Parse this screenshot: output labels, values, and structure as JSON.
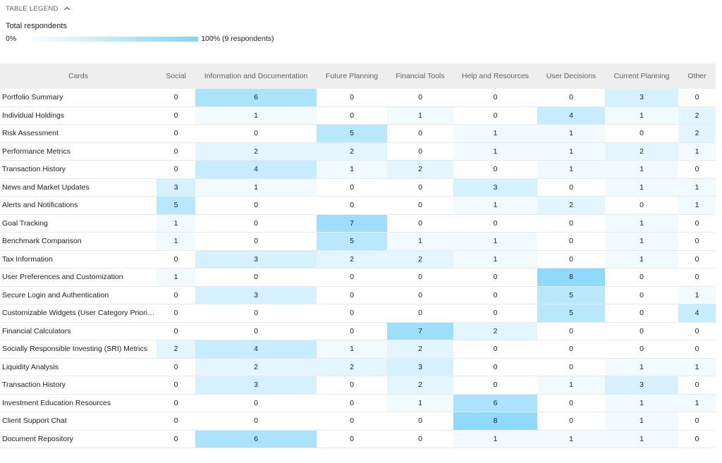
{
  "legend": {
    "toggle_label": "TABLE LEGEND",
    "title": "Total respondents",
    "min_label": "0%",
    "max_label": "100% (9 respondents)"
  },
  "colors": {
    "scale_max": "#81d4fa",
    "header_bg": "#eeeeee",
    "row_border": "#e8eaed"
  },
  "table": {
    "max_value": 9,
    "columns": [
      "Cards",
      "Social",
      "Information and Documentation",
      "Future Planning",
      "Financial Tools",
      "Help and Resources",
      "User Decisions",
      "Current Planning",
      "Other"
    ],
    "rows": [
      {
        "card": "Portfolio Summary",
        "values": [
          0,
          6,
          0,
          0,
          0,
          0,
          3,
          0
        ]
      },
      {
        "card": "Individual Holdings",
        "values": [
          0,
          1,
          0,
          1,
          0,
          4,
          1,
          2
        ]
      },
      {
        "card": "Risk Assessment",
        "values": [
          0,
          0,
          5,
          0,
          1,
          1,
          0,
          2
        ]
      },
      {
        "card": "Performance Metrics",
        "values": [
          0,
          2,
          2,
          0,
          1,
          1,
          2,
          1
        ]
      },
      {
        "card": "Transaction History",
        "values": [
          0,
          4,
          1,
          2,
          0,
          1,
          1,
          0
        ]
      },
      {
        "card": "News and Market Updates",
        "values": [
          3,
          1,
          0,
          0,
          3,
          0,
          1,
          1
        ]
      },
      {
        "card": "Alerts and Notifications",
        "values": [
          5,
          0,
          0,
          0,
          1,
          2,
          0,
          1
        ]
      },
      {
        "card": "Goal Tracking",
        "values": [
          1,
          0,
          7,
          0,
          0,
          0,
          1,
          0
        ]
      },
      {
        "card": "Benchmark Comparison",
        "values": [
          1,
          0,
          5,
          1,
          1,
          0,
          1,
          0
        ]
      },
      {
        "card": "Tax Information",
        "values": [
          0,
          3,
          2,
          2,
          1,
          0,
          1,
          0
        ]
      },
      {
        "card": "User Preferences and Customization",
        "values": [
          1,
          0,
          0,
          0,
          0,
          8,
          0,
          0
        ]
      },
      {
        "card": "Secure Login and Authentication",
        "values": [
          0,
          3,
          0,
          0,
          0,
          5,
          0,
          1
        ]
      },
      {
        "card": "Customizable Widgets (User Category Prioritization)",
        "values": [
          0,
          0,
          0,
          0,
          0,
          5,
          0,
          4
        ]
      },
      {
        "card": "Financial Calculators",
        "values": [
          0,
          0,
          0,
          7,
          2,
          0,
          0,
          0
        ]
      },
      {
        "card": "Socially Responsible Investing (SRI) Metrics",
        "values": [
          2,
          4,
          1,
          2,
          0,
          0,
          0,
          0
        ]
      },
      {
        "card": "Liquidity Analysis",
        "values": [
          0,
          2,
          2,
          3,
          0,
          0,
          1,
          1
        ]
      },
      {
        "card": "Transaction History",
        "values": [
          0,
          3,
          0,
          2,
          0,
          1,
          3,
          0
        ]
      },
      {
        "card": "Investment Education Resources",
        "values": [
          0,
          0,
          0,
          1,
          6,
          0,
          1,
          1
        ]
      },
      {
        "card": "Client Support Chat",
        "values": [
          0,
          0,
          0,
          0,
          8,
          0,
          1,
          0
        ]
      },
      {
        "card": "Document Repository",
        "values": [
          0,
          6,
          0,
          0,
          1,
          1,
          1,
          0
        ]
      }
    ]
  }
}
